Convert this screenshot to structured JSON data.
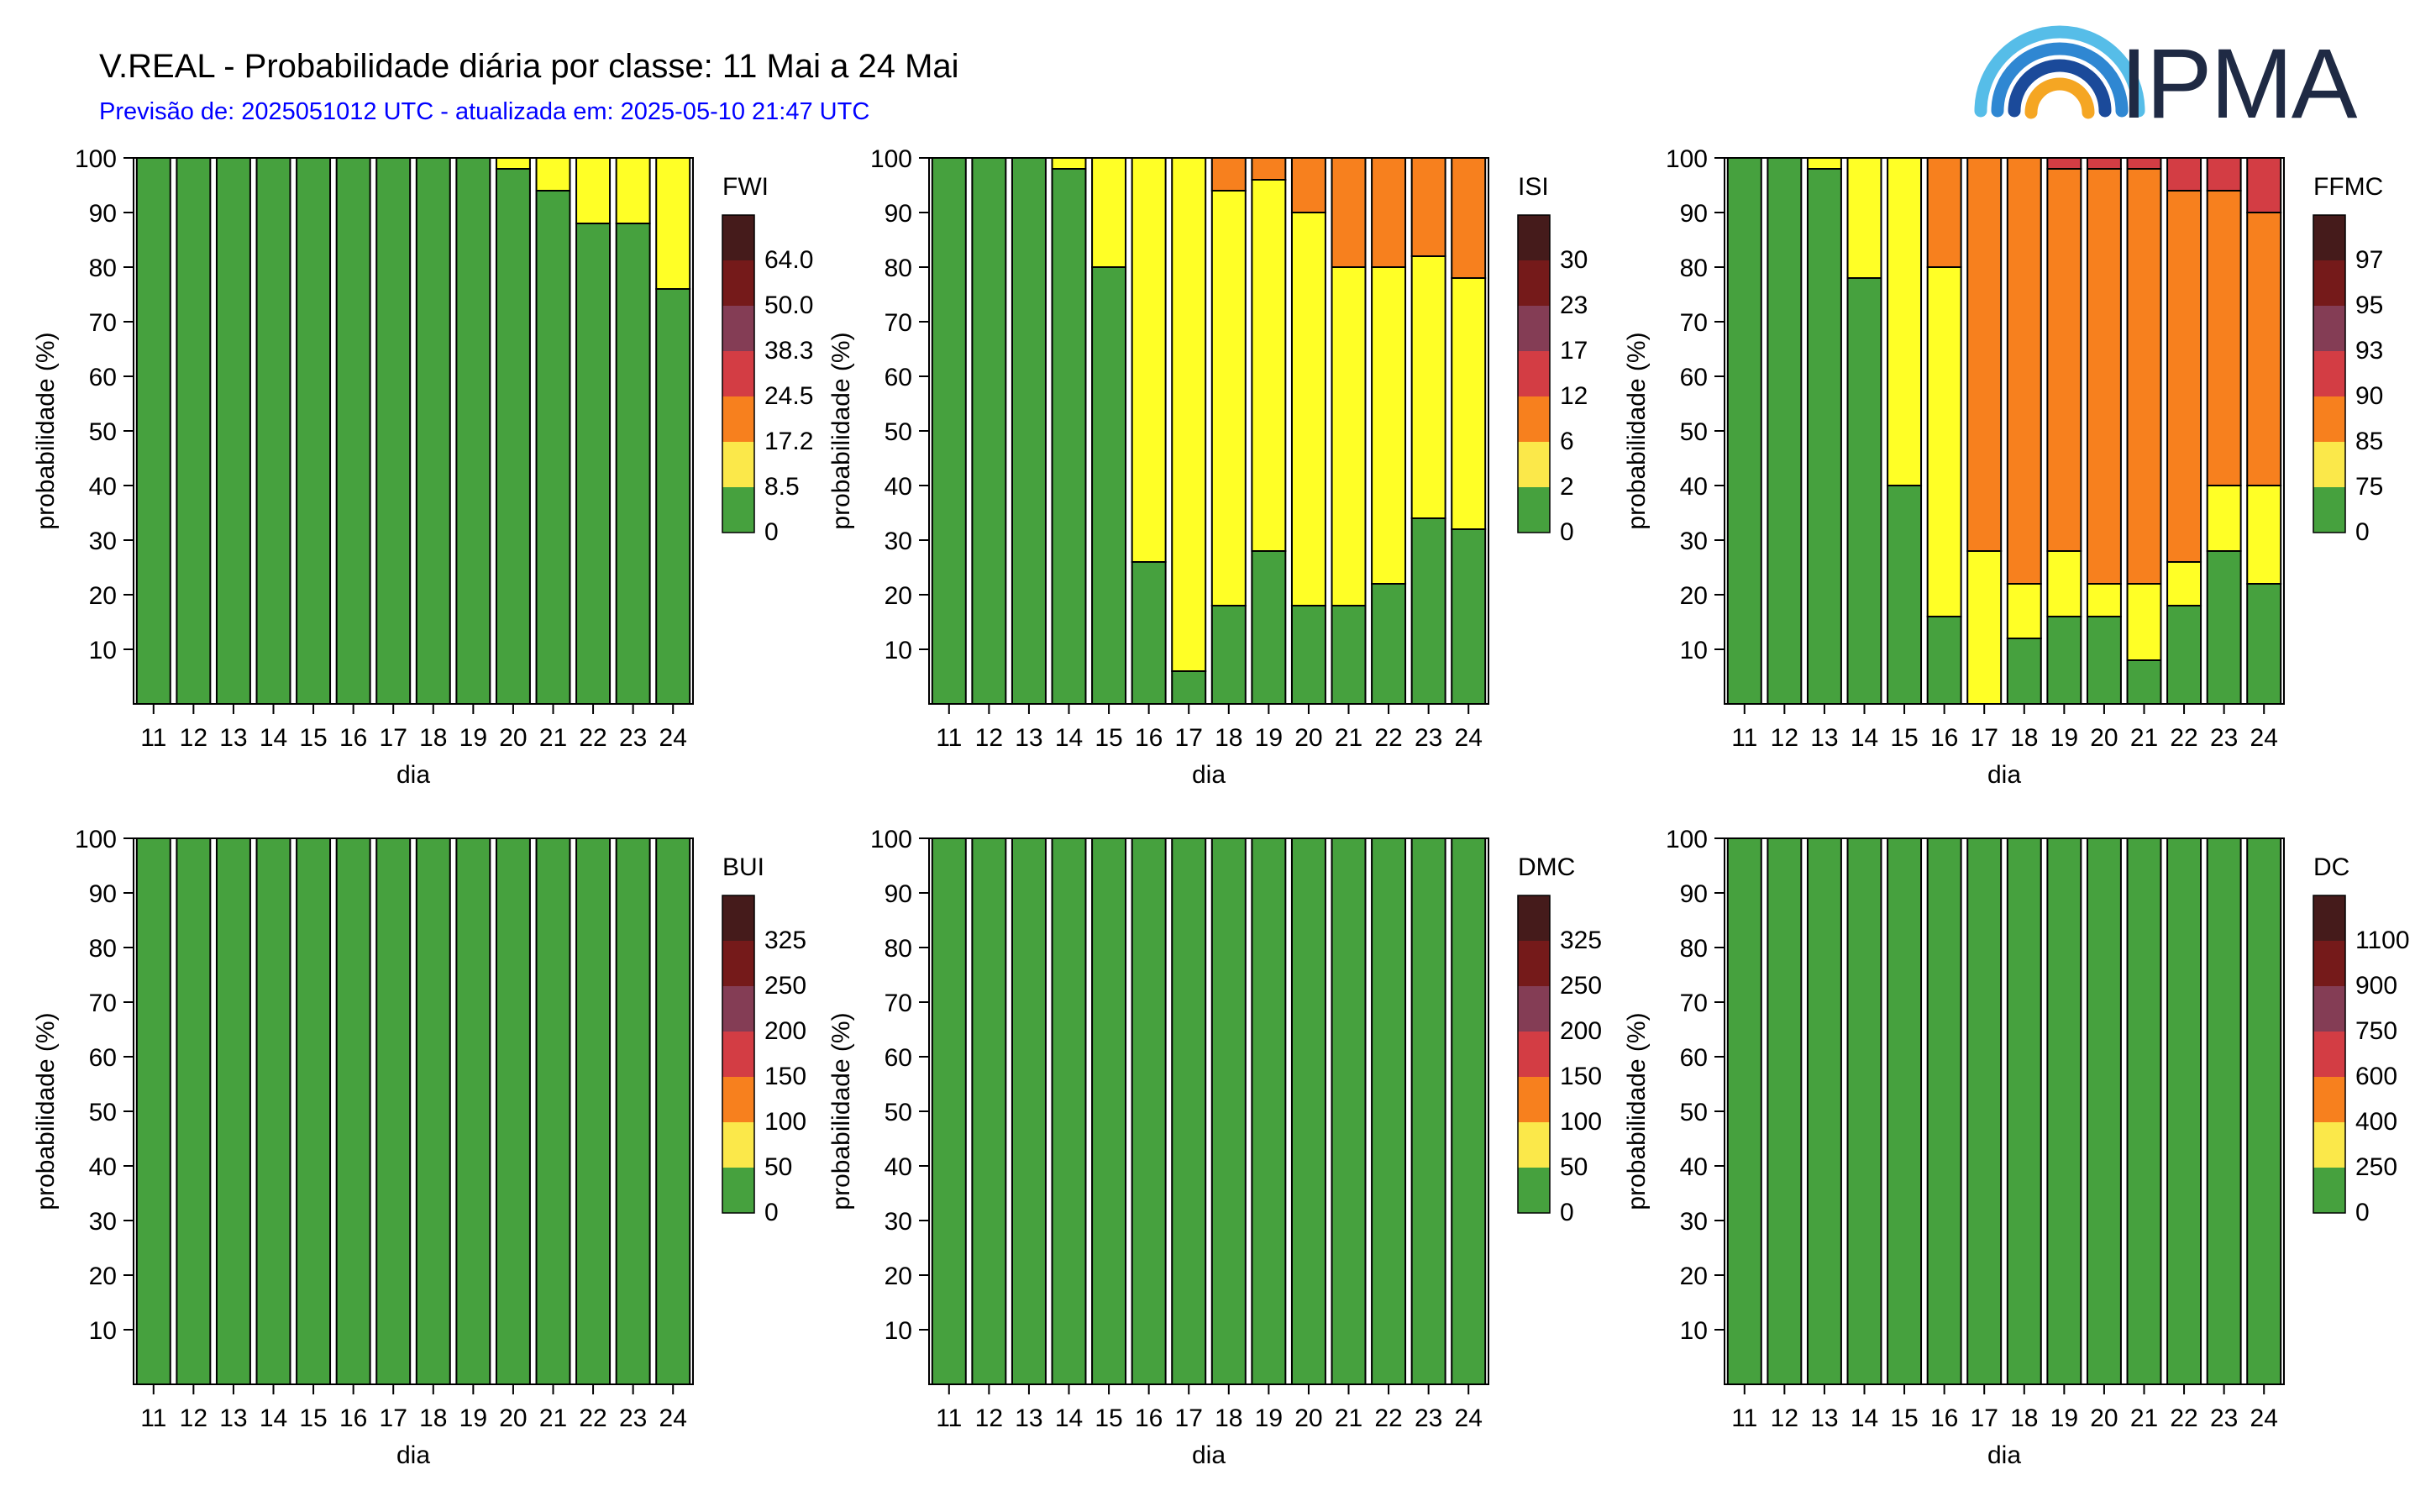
{
  "header": {
    "title": "V.REAL - Probabilidade diária por classe: 11 Mai a 24 Mai",
    "subtitle": "Previsão de: 2025051012 UTC - atualizada em: 2025-05-10 21:47 UTC",
    "subtitle_color": "#0000ff"
  },
  "logo": {
    "text": "IPMA",
    "icon": "ipma-rainbow-logo-icon"
  },
  "class_colors": [
    "#46a13e",
    "#ffff26",
    "#f7801e",
    "#d33d44",
    "#843d55",
    "#751a1a",
    "#451b1b"
  ],
  "legend_colors": [
    "#46a13e",
    "#fbe84a",
    "#f7801e",
    "#d33d44",
    "#843d55",
    "#751a1a",
    "#451b1b"
  ],
  "chart_data": [
    {
      "type": "bar",
      "stacked": true,
      "index": "FWI",
      "categories": [
        "11",
        "12",
        "13",
        "14",
        "15",
        "16",
        "17",
        "18",
        "19",
        "20",
        "21",
        "22",
        "23",
        "24"
      ],
      "xlabel": "dia",
      "ylabel": "probabilidade (%)",
      "ylim": [
        0,
        100
      ],
      "yticks": [
        10,
        20,
        30,
        40,
        50,
        60,
        70,
        80,
        90,
        100
      ],
      "legend_labels": [
        "0",
        "8.5",
        "17.2",
        "24.5",
        "38.3",
        "50.0",
        "64.0"
      ],
      "series": [
        {
          "values": [
            100,
            100,
            100,
            100,
            100,
            100,
            100,
            100,
            100,
            98,
            94,
            88,
            88,
            76
          ]
        },
        {
          "values": [
            0,
            0,
            0,
            0,
            0,
            0,
            0,
            0,
            0,
            2,
            6,
            12,
            12,
            24
          ]
        },
        {
          "values": [
            0,
            0,
            0,
            0,
            0,
            0,
            0,
            0,
            0,
            0,
            0,
            0,
            0,
            0
          ]
        },
        {
          "values": [
            0,
            0,
            0,
            0,
            0,
            0,
            0,
            0,
            0,
            0,
            0,
            0,
            0,
            0
          ]
        },
        {
          "values": [
            0,
            0,
            0,
            0,
            0,
            0,
            0,
            0,
            0,
            0,
            0,
            0,
            0,
            0
          ]
        },
        {
          "values": [
            0,
            0,
            0,
            0,
            0,
            0,
            0,
            0,
            0,
            0,
            0,
            0,
            0,
            0
          ]
        },
        {
          "values": [
            0,
            0,
            0,
            0,
            0,
            0,
            0,
            0,
            0,
            0,
            0,
            0,
            0,
            0
          ]
        }
      ]
    },
    {
      "type": "bar",
      "stacked": true,
      "index": "ISI",
      "categories": [
        "11",
        "12",
        "13",
        "14",
        "15",
        "16",
        "17",
        "18",
        "19",
        "20",
        "21",
        "22",
        "23",
        "24"
      ],
      "xlabel": "dia",
      "ylabel": "probabilidade (%)",
      "ylim": [
        0,
        100
      ],
      "yticks": [
        10,
        20,
        30,
        40,
        50,
        60,
        70,
        80,
        90,
        100
      ],
      "legend_labels": [
        "0",
        "2",
        "6",
        "12",
        "17",
        "23",
        "30"
      ],
      "series": [
        {
          "values": [
            100,
            100,
            100,
            98,
            80,
            26,
            6,
            18,
            28,
            18,
            18,
            22,
            34,
            32
          ]
        },
        {
          "values": [
            0,
            0,
            0,
            2,
            20,
            74,
            94,
            76,
            68,
            72,
            62,
            58,
            48,
            46
          ]
        },
        {
          "values": [
            0,
            0,
            0,
            0,
            0,
            0,
            0,
            6,
            4,
            10,
            20,
            20,
            18,
            22
          ]
        },
        {
          "values": [
            0,
            0,
            0,
            0,
            0,
            0,
            0,
            0,
            0,
            0,
            0,
            0,
            0,
            0
          ]
        },
        {
          "values": [
            0,
            0,
            0,
            0,
            0,
            0,
            0,
            0,
            0,
            0,
            0,
            0,
            0,
            0
          ]
        },
        {
          "values": [
            0,
            0,
            0,
            0,
            0,
            0,
            0,
            0,
            0,
            0,
            0,
            0,
            0,
            0
          ]
        },
        {
          "values": [
            0,
            0,
            0,
            0,
            0,
            0,
            0,
            0,
            0,
            0,
            0,
            0,
            0,
            0
          ]
        }
      ]
    },
    {
      "type": "bar",
      "stacked": true,
      "index": "FFMC",
      "categories": [
        "11",
        "12",
        "13",
        "14",
        "15",
        "16",
        "17",
        "18",
        "19",
        "20",
        "21",
        "22",
        "23",
        "24"
      ],
      "xlabel": "dia",
      "ylabel": "probabilidade (%)",
      "ylim": [
        0,
        100
      ],
      "yticks": [
        10,
        20,
        30,
        40,
        50,
        60,
        70,
        80,
        90,
        100
      ],
      "legend_labels": [
        "0",
        "75",
        "85",
        "90",
        "93",
        "95",
        "97"
      ],
      "series": [
        {
          "values": [
            100,
            100,
            98,
            78,
            40,
            16,
            0,
            12,
            16,
            16,
            8,
            18,
            28,
            22
          ]
        },
        {
          "values": [
            0,
            0,
            2,
            22,
            60,
            64,
            28,
            10,
            12,
            6,
            14,
            8,
            12,
            18
          ]
        },
        {
          "values": [
            0,
            0,
            0,
            0,
            0,
            20,
            72,
            78,
            70,
            76,
            76,
            68,
            54,
            50
          ]
        },
        {
          "values": [
            0,
            0,
            0,
            0,
            0,
            0,
            0,
            0,
            2,
            2,
            2,
            6,
            6,
            10
          ]
        },
        {
          "values": [
            0,
            0,
            0,
            0,
            0,
            0,
            0,
            0,
            0,
            0,
            0,
            0,
            0,
            0
          ]
        },
        {
          "values": [
            0,
            0,
            0,
            0,
            0,
            0,
            0,
            0,
            0,
            0,
            0,
            0,
            0,
            0
          ]
        },
        {
          "values": [
            0,
            0,
            0,
            0,
            0,
            0,
            0,
            0,
            0,
            0,
            0,
            0,
            0,
            0
          ]
        }
      ]
    },
    {
      "type": "bar",
      "stacked": true,
      "index": "BUI",
      "categories": [
        "11",
        "12",
        "13",
        "14",
        "15",
        "16",
        "17",
        "18",
        "19",
        "20",
        "21",
        "22",
        "23",
        "24"
      ],
      "xlabel": "dia",
      "ylabel": "probabilidade (%)",
      "ylim": [
        0,
        100
      ],
      "yticks": [
        10,
        20,
        30,
        40,
        50,
        60,
        70,
        80,
        90,
        100
      ],
      "legend_labels": [
        "0",
        "50",
        "100",
        "150",
        "200",
        "250",
        "325"
      ],
      "series": [
        {
          "values": [
            100,
            100,
            100,
            100,
            100,
            100,
            100,
            100,
            100,
            100,
            100,
            100,
            100,
            100
          ]
        },
        {
          "values": [
            0,
            0,
            0,
            0,
            0,
            0,
            0,
            0,
            0,
            0,
            0,
            0,
            0,
            0
          ]
        },
        {
          "values": [
            0,
            0,
            0,
            0,
            0,
            0,
            0,
            0,
            0,
            0,
            0,
            0,
            0,
            0
          ]
        },
        {
          "values": [
            0,
            0,
            0,
            0,
            0,
            0,
            0,
            0,
            0,
            0,
            0,
            0,
            0,
            0
          ]
        },
        {
          "values": [
            0,
            0,
            0,
            0,
            0,
            0,
            0,
            0,
            0,
            0,
            0,
            0,
            0,
            0
          ]
        },
        {
          "values": [
            0,
            0,
            0,
            0,
            0,
            0,
            0,
            0,
            0,
            0,
            0,
            0,
            0,
            0
          ]
        },
        {
          "values": [
            0,
            0,
            0,
            0,
            0,
            0,
            0,
            0,
            0,
            0,
            0,
            0,
            0,
            0
          ]
        }
      ]
    },
    {
      "type": "bar",
      "stacked": true,
      "index": "DMC",
      "categories": [
        "11",
        "12",
        "13",
        "14",
        "15",
        "16",
        "17",
        "18",
        "19",
        "20",
        "21",
        "22",
        "23",
        "24"
      ],
      "xlabel": "dia",
      "ylabel": "probabilidade (%)",
      "ylim": [
        0,
        100
      ],
      "yticks": [
        10,
        20,
        30,
        40,
        50,
        60,
        70,
        80,
        90,
        100
      ],
      "legend_labels": [
        "0",
        "50",
        "100",
        "150",
        "200",
        "250",
        "325"
      ],
      "series": [
        {
          "values": [
            100,
            100,
            100,
            100,
            100,
            100,
            100,
            100,
            100,
            100,
            100,
            100,
            100,
            100
          ]
        },
        {
          "values": [
            0,
            0,
            0,
            0,
            0,
            0,
            0,
            0,
            0,
            0,
            0,
            0,
            0,
            0
          ]
        },
        {
          "values": [
            0,
            0,
            0,
            0,
            0,
            0,
            0,
            0,
            0,
            0,
            0,
            0,
            0,
            0
          ]
        },
        {
          "values": [
            0,
            0,
            0,
            0,
            0,
            0,
            0,
            0,
            0,
            0,
            0,
            0,
            0,
            0
          ]
        },
        {
          "values": [
            0,
            0,
            0,
            0,
            0,
            0,
            0,
            0,
            0,
            0,
            0,
            0,
            0,
            0
          ]
        },
        {
          "values": [
            0,
            0,
            0,
            0,
            0,
            0,
            0,
            0,
            0,
            0,
            0,
            0,
            0,
            0
          ]
        },
        {
          "values": [
            0,
            0,
            0,
            0,
            0,
            0,
            0,
            0,
            0,
            0,
            0,
            0,
            0,
            0
          ]
        }
      ]
    },
    {
      "type": "bar",
      "stacked": true,
      "index": "DC",
      "categories": [
        "11",
        "12",
        "13",
        "14",
        "15",
        "16",
        "17",
        "18",
        "19",
        "20",
        "21",
        "22",
        "23",
        "24"
      ],
      "xlabel": "dia",
      "ylabel": "probabilidade (%)",
      "ylim": [
        0,
        100
      ],
      "yticks": [
        10,
        20,
        30,
        40,
        50,
        60,
        70,
        80,
        90,
        100
      ],
      "legend_labels": [
        "0",
        "250",
        "400",
        "600",
        "750",
        "900",
        "1100"
      ],
      "series": [
        {
          "values": [
            100,
            100,
            100,
            100,
            100,
            100,
            100,
            100,
            100,
            100,
            100,
            100,
            100,
            100
          ]
        },
        {
          "values": [
            0,
            0,
            0,
            0,
            0,
            0,
            0,
            0,
            0,
            0,
            0,
            0,
            0,
            0
          ]
        },
        {
          "values": [
            0,
            0,
            0,
            0,
            0,
            0,
            0,
            0,
            0,
            0,
            0,
            0,
            0,
            0
          ]
        },
        {
          "values": [
            0,
            0,
            0,
            0,
            0,
            0,
            0,
            0,
            0,
            0,
            0,
            0,
            0,
            0
          ]
        },
        {
          "values": [
            0,
            0,
            0,
            0,
            0,
            0,
            0,
            0,
            0,
            0,
            0,
            0,
            0,
            0
          ]
        },
        {
          "values": [
            0,
            0,
            0,
            0,
            0,
            0,
            0,
            0,
            0,
            0,
            0,
            0,
            0,
            0
          ]
        },
        {
          "values": [
            0,
            0,
            0,
            0,
            0,
            0,
            0,
            0,
            0,
            0,
            0,
            0,
            0,
            0
          ]
        }
      ]
    }
  ]
}
